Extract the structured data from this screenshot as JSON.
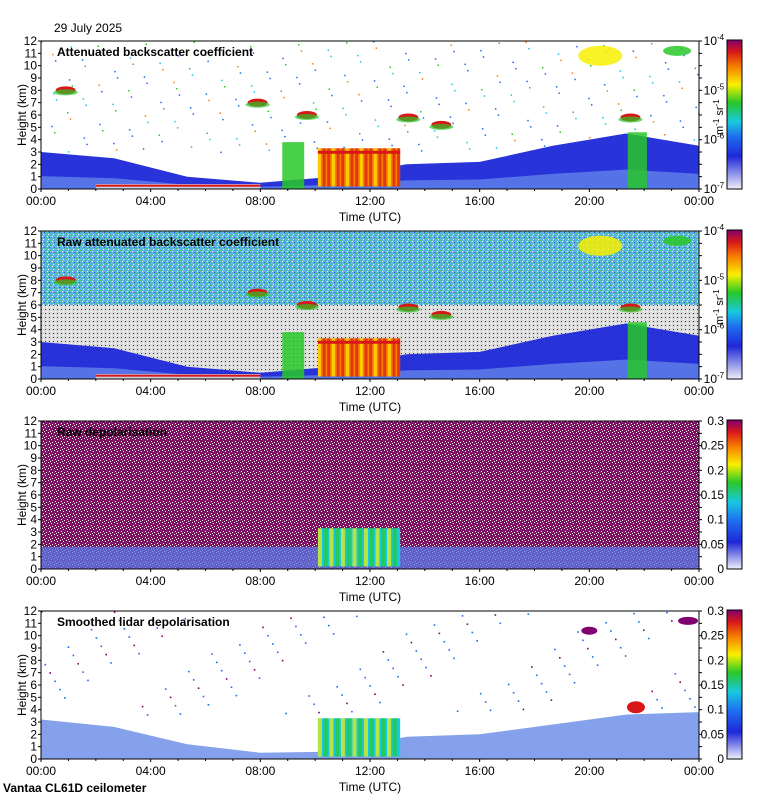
{
  "header": {
    "date": "29 July 2025"
  },
  "footer": {
    "site": "Vantaa CL61D ceilometer"
  },
  "colors": {
    "low": "#e8e8f0",
    "blue": "#1e28d8",
    "cyan": "#18c8e0",
    "green": "#28c828",
    "yellow": "#f8f000",
    "orange": "#f88000",
    "red": "#d81818",
    "purple": "#800070",
    "grey": "#dcdcdc"
  },
  "chart_data": [
    {
      "type": "heatmap",
      "title": "Attenuated backscatter coefficient",
      "xlabel": "Time (UTC)",
      "ylabel": "Height (km)",
      "xticks": [
        "00:00",
        "04:00",
        "08:00",
        "12:00",
        "16:00",
        "20:00",
        "00:00"
      ],
      "yticks": [
        "0",
        "1",
        "2",
        "3",
        "4",
        "5",
        "6",
        "7",
        "8",
        "9",
        "10",
        "11",
        "12"
      ],
      "ylim": [
        0,
        12
      ],
      "colorbar": {
        "scale": "log",
        "range": [
          1e-07,
          0.0001
        ],
        "ticks": [
          {
            "base": "10",
            "exp": "-7"
          },
          {
            "base": "10",
            "exp": "-6"
          },
          {
            "base": "10",
            "exp": "-5"
          },
          {
            "base": "10",
            "exp": "-4"
          }
        ],
        "units": "m-1 sr-1",
        "units_parts": [
          "m",
          "-1",
          " sr",
          "-1"
        ]
      },
      "features": [
        {
          "name": "boundary layer",
          "from_hour": 0,
          "to_hour": 24,
          "top_km": [
            3.0,
            2.5,
            1.0,
            0.5,
            1.0,
            2.0,
            2.2,
            3.5,
            4.5,
            3.5
          ]
        },
        {
          "name": "low cloud",
          "from_hour": 10.1,
          "to_hour": 13.1,
          "base_km": 0.2,
          "top_km": 3.3
        },
        {
          "name": "cloud fragments",
          "hours": [
            0.9,
            7.9,
            9.7,
            13.4,
            14.6,
            21.5
          ],
          "heights_km": [
            8.0,
            7.0,
            6.0,
            5.8,
            5.2,
            5.8
          ]
        }
      ]
    },
    {
      "type": "heatmap",
      "title": "Raw attenuated backscatter coefficient",
      "xlabel": "Time (UTC)",
      "ylabel": "Height (km)",
      "xticks": [
        "00:00",
        "04:00",
        "08:00",
        "12:00",
        "16:00",
        "20:00",
        "00:00"
      ],
      "yticks": [
        "0",
        "1",
        "2",
        "3",
        "4",
        "5",
        "6",
        "7",
        "8",
        "9",
        "10",
        "11",
        "12"
      ],
      "ylim": [
        0,
        12
      ],
      "colorbar": {
        "scale": "log",
        "range": [
          1e-07,
          0.0001
        ],
        "ticks": [
          {
            "base": "10",
            "exp": "-7"
          },
          {
            "base": "10",
            "exp": "-6"
          },
          {
            "base": "10",
            "exp": "-5"
          },
          {
            "base": "10",
            "exp": "-4"
          }
        ],
        "units": "m-1 sr-1",
        "units_parts": [
          "m",
          "-1",
          " sr",
          "-1"
        ]
      },
      "features": [
        {
          "name": "noisy background",
          "from_hour": 0,
          "to_hour": 24
        },
        {
          "name": "low cloud",
          "from_hour": 10.1,
          "to_hour": 13.1,
          "base_km": 0.2,
          "top_km": 3.3
        }
      ]
    },
    {
      "type": "heatmap",
      "title": "Raw depolarisation",
      "xlabel": "Time (UTC)",
      "ylabel": "Height (km)",
      "xticks": [
        "00:00",
        "04:00",
        "08:00",
        "12:00",
        "16:00",
        "20:00",
        "00:00"
      ],
      "yticks": [
        "0",
        "1",
        "2",
        "3",
        "4",
        "5",
        "6",
        "7",
        "8",
        "9",
        "10",
        "11",
        "12"
      ],
      "ylim": [
        0,
        12
      ],
      "colorbar": {
        "scale": "linear",
        "range": [
          0,
          0.3
        ],
        "ticks": [
          "0",
          "0.05",
          "0.1",
          "0.15",
          "0.2",
          "0.25",
          "0.3"
        ]
      },
      "features": [
        {
          "name": "noise",
          "from_hour": 0,
          "to_hour": 24
        },
        {
          "name": "low cloud",
          "from_hour": 10.1,
          "to_hour": 13.1,
          "base_km": 0.2,
          "top_km": 3.3
        }
      ]
    },
    {
      "type": "heatmap",
      "title": "Smoothed lidar depolarisation",
      "xlabel": "Time (UTC)",
      "ylabel": "Height (km)",
      "xticks": [
        "00:00",
        "04:00",
        "08:00",
        "12:00",
        "16:00",
        "20:00",
        "00:00"
      ],
      "yticks": [
        "0",
        "1",
        "2",
        "3",
        "4",
        "5",
        "6",
        "7",
        "8",
        "9",
        "10",
        "11",
        "12"
      ],
      "ylim": [
        0,
        12
      ],
      "colorbar": {
        "scale": "linear",
        "range": [
          0,
          0.3
        ],
        "ticks": [
          "0",
          "0.05",
          "0.1",
          "0.15",
          "0.2",
          "0.25",
          "0.3"
        ]
      },
      "features": [
        {
          "name": "boundary layer",
          "from_hour": 0,
          "to_hour": 24
        },
        {
          "name": "low cloud",
          "from_hour": 10.1,
          "to_hour": 13.1,
          "base_km": 0.2,
          "top_km": 3.3
        }
      ]
    }
  ]
}
